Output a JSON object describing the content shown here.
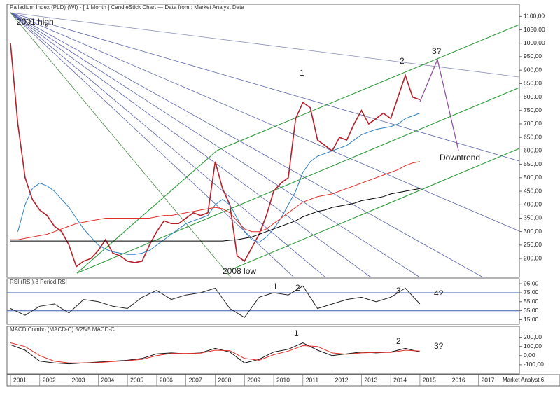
{
  "footer": "Market Analyst 6",
  "chart_data": [
    {
      "type": "line",
      "title": "Palladium Index (PLD) (WI) - [ 1 Month ] CandleStick Chart — Data from : Market Analyst Data",
      "annotations": [
        "2001 high",
        "1",
        "2",
        "3?",
        "Downtrend",
        "2008 low"
      ],
      "xlim": [
        2000.88,
        2018.4
      ],
      "ylim": [
        130,
        1145
      ],
      "yticks": [
        {
          "value": 1100,
          "label": "1100,00"
        },
        {
          "value": 1050,
          "label": "1050,00"
        },
        {
          "value": 1000,
          "label": "1000,00"
        },
        {
          "value": 950,
          "label": "950,00"
        },
        {
          "value": 900,
          "label": "900,00"
        },
        {
          "value": 850,
          "label": "850,00"
        },
        {
          "value": 800,
          "label": "800,00"
        },
        {
          "value": 750,
          "label": "750,00"
        },
        {
          "value": 700,
          "label": "700,00"
        },
        {
          "value": 650,
          "label": "650,00"
        },
        {
          "value": 600,
          "label": "600,00"
        },
        {
          "value": 550,
          "label": "550,00"
        },
        {
          "value": 500,
          "label": "500,00"
        },
        {
          "value": 450,
          "label": "450,00"
        },
        {
          "value": 400,
          "label": "400,00"
        },
        {
          "value": 350,
          "label": "350,00"
        },
        {
          "value": 300,
          "label": "300,00"
        },
        {
          "value": 250,
          "label": "250,00"
        },
        {
          "value": 200,
          "label": "200,00"
        }
      ],
      "x": [
        2001,
        2001.25,
        2001.5,
        2001.75,
        2002,
        2002.25,
        2002.5,
        2002.75,
        2003,
        2003.25,
        2003.5,
        2003.75,
        2004,
        2004.25,
        2004.5,
        2004.75,
        2005,
        2005.25,
        2005.5,
        2005.75,
        2006,
        2006.25,
        2006.5,
        2006.75,
        2007,
        2007.25,
        2007.5,
        2007.75,
        2008,
        2008.25,
        2008.5,
        2008.75,
        2009,
        2009.25,
        2009.5,
        2009.75,
        2010,
        2010.25,
        2010.5,
        2010.75,
        2011,
        2011.25,
        2011.5,
        2011.75,
        2012,
        2012.25,
        2012.5,
        2012.75,
        2013,
        2013.25,
        2013.5,
        2013.75,
        2014,
        2014.25,
        2014.5,
        2014.75,
        2015
      ],
      "series": [
        {
          "color": "#b3202a",
          "width": 1.6,
          "values": [
            1000,
            700,
            500,
            420,
            380,
            360,
            320,
            300,
            250,
            170,
            190,
            200,
            230,
            270,
            220,
            210,
            190,
            185,
            190,
            250,
            300,
            340,
            330,
            330,
            350,
            370,
            360,
            370,
            560,
            460,
            400,
            210,
            190,
            240,
            290,
            360,
            450,
            480,
            500,
            720,
            780,
            760,
            640,
            620,
            600,
            650,
            640,
            700,
            750,
            700,
            720,
            740,
            720,
            800,
            880,
            800,
            790
          ]
        },
        {
          "color": "#2f7fc0",
          "width": 1,
          "values": [
            null,
            300,
            400,
            460,
            480,
            470,
            450,
            420,
            390,
            350,
            310,
            280,
            250,
            235,
            225,
            220,
            215,
            215,
            220,
            230,
            250,
            270,
            290,
            310,
            330,
            340,
            350,
            360,
            400,
            420,
            400,
            350,
            300,
            270,
            260,
            280,
            310,
            350,
            400,
            450,
            520,
            560,
            580,
            590,
            600,
            610,
            620,
            640,
            660,
            670,
            680,
            685,
            690,
            700,
            720,
            730,
            740
          ]
        },
        {
          "color": "#e0302a",
          "width": 1,
          "values": [
            270,
            270,
            275,
            280,
            285,
            290,
            300,
            310,
            320,
            330,
            335,
            340,
            345,
            350,
            350,
            350,
            350,
            350,
            350,
            350,
            355,
            360,
            360,
            365,
            370,
            375,
            380,
            385,
            390,
            385,
            370,
            340,
            310,
            300,
            300,
            310,
            330,
            350,
            370,
            390,
            410,
            420,
            430,
            435,
            440,
            450,
            460,
            470,
            480,
            490,
            500,
            510,
            520,
            530,
            545,
            555,
            560
          ]
        },
        {
          "color": "#000000",
          "width": 1,
          "values": [
            265,
            265,
            265,
            265,
            265,
            265,
            265,
            265,
            265,
            265,
            265,
            265,
            265,
            265,
            265,
            265,
            265,
            265,
            265,
            265,
            265,
            265,
            265,
            265,
            265,
            265,
            265,
            265,
            265,
            265,
            268,
            270,
            275,
            280,
            290,
            300,
            310,
            320,
            330,
            340,
            355,
            365,
            375,
            380,
            390,
            395,
            400,
            405,
            415,
            420,
            425,
            430,
            440,
            445,
            450,
            455,
            460
          ]
        }
      ]
    },
    {
      "type": "line",
      "title": "RSI (RSI) 8 Period RSI",
      "annotations": [
        "1",
        "2",
        "3",
        "4?"
      ],
      "xlim": [
        2000.88,
        2018.4
      ],
      "ylim": [
        5,
        106
      ],
      "yticks": [
        {
          "value": 95,
          "label": "95,00"
        },
        {
          "value": 75,
          "label": "75,00"
        },
        {
          "value": 55,
          "label": "55,00"
        },
        {
          "value": 35,
          "label": "35,00"
        },
        {
          "value": 15,
          "label": "15,00"
        }
      ],
      "levels": [
        75,
        35
      ],
      "level_color": "#3a5fb0",
      "x": [
        2001,
        2001.5,
        2002,
        2002.5,
        2003,
        2003.5,
        2004,
        2004.5,
        2005,
        2005.5,
        2006,
        2006.5,
        2007,
        2007.5,
        2008,
        2008.5,
        2009,
        2009.5,
        2010,
        2010.5,
        2011,
        2011.5,
        2012,
        2012.5,
        2013,
        2013.5,
        2014,
        2014.5,
        2015
      ],
      "series": [
        {
          "color": "#222222",
          "width": 1,
          "values": [
            40,
            25,
            45,
            50,
            30,
            60,
            55,
            45,
            40,
            65,
            80,
            60,
            70,
            75,
            85,
            40,
            20,
            65,
            75,
            70,
            90,
            40,
            50,
            60,
            65,
            55,
            65,
            85,
            50
          ]
        }
      ]
    },
    {
      "type": "line",
      "title": "MACD Combo (MACD-C) 5/25/5 MACD-C",
      "annotations": [
        "1",
        "2",
        "3?"
      ],
      "xlim": [
        2000.88,
        2018.4
      ],
      "ylim": [
        -200,
        320
      ],
      "yticks": [
        {
          "value": 200,
          "label": "200,00"
        },
        {
          "value": 100,
          "label": "100,00"
        },
        {
          "value": 0,
          "label": "0,00"
        },
        {
          "value": -100,
          "label": "-100,00"
        }
      ],
      "xticks": [
        2001,
        2002,
        2003,
        2004,
        2005,
        2006,
        2007,
        2008,
        2009,
        2010,
        2011,
        2012,
        2013,
        2014,
        2015,
        2016,
        2017
      ],
      "x": [
        2001,
        2001.5,
        2002,
        2002.5,
        2003,
        2003.5,
        2004,
        2004.5,
        2005,
        2005.5,
        2006,
        2006.5,
        2007,
        2007.5,
        2008,
        2008.5,
        2009,
        2009.5,
        2010,
        2010.5,
        2011,
        2011.5,
        2012,
        2012.5,
        2013,
        2013.5,
        2014,
        2014.5,
        2015
      ],
      "series": [
        {
          "color": "#111111",
          "width": 1,
          "values": [
            120,
            60,
            -60,
            -80,
            -90,
            -80,
            -70,
            -60,
            -50,
            -30,
            20,
            30,
            20,
            30,
            80,
            40,
            -80,
            -40,
            40,
            70,
            140,
            60,
            0,
            20,
            40,
            30,
            40,
            80,
            40
          ]
        },
        {
          "color": "#e0302a",
          "width": 1,
          "values": [
            140,
            100,
            0,
            -60,
            -80,
            -80,
            -75,
            -65,
            -55,
            -40,
            0,
            25,
            25,
            28,
            60,
            55,
            -30,
            -50,
            10,
            50,
            110,
            100,
            30,
            15,
            30,
            35,
            35,
            60,
            50
          ]
        }
      ]
    }
  ]
}
